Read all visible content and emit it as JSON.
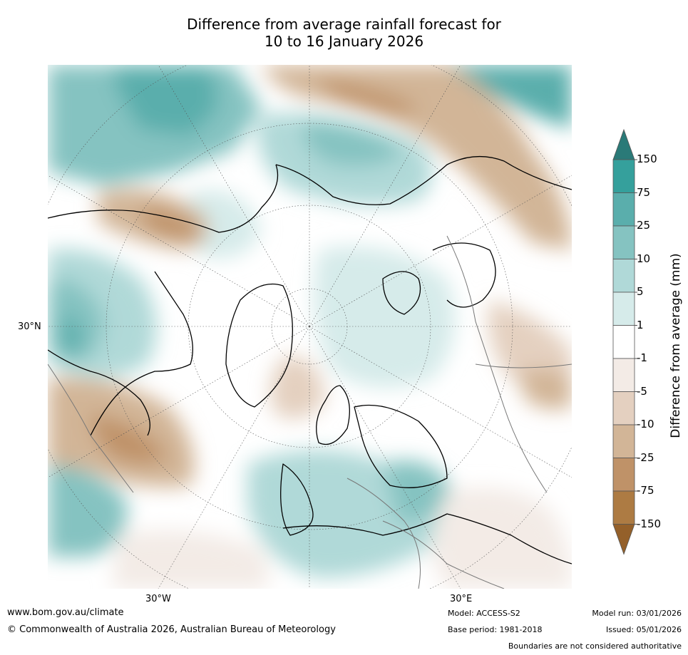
{
  "title": {
    "line1": "Difference from average rainfall forecast for",
    "line2": "10 to 16 January 2026"
  },
  "map": {
    "projection": "north-polar-stereographic",
    "latitude_labels": [
      "30°N"
    ],
    "longitude_labels": [
      "30°W",
      "30°E"
    ]
  },
  "colorbar": {
    "title": "Difference from average (mm)",
    "tick_labels": [
      "150",
      "75",
      "25",
      "10",
      "5",
      "1",
      "-1",
      "-5",
      "-10",
      "-25",
      "-75",
      "-150"
    ],
    "colors": [
      "#2a7a78",
      "#35a09c",
      "#5aaeac",
      "#85c3c1",
      "#b0d9d8",
      "#d6ebea",
      "#ffffff",
      "#f3ebe6",
      "#e4d0c0",
      "#d2b597",
      "#bf9268",
      "#ad7b43",
      "#94602a"
    ]
  },
  "footer": {
    "url": "www.bom.gov.au/climate",
    "copyright": "© Commonwealth of Australia 2026, Australian Bureau of Meteorology",
    "model": "Model: ACCESS-S2",
    "base_period": "Base period: 1981-2018",
    "model_run": "Model run: 03/01/2026",
    "issued": "Issued: 05/01/2026",
    "disclaimer": "Boundaries are not considered authoritative"
  }
}
